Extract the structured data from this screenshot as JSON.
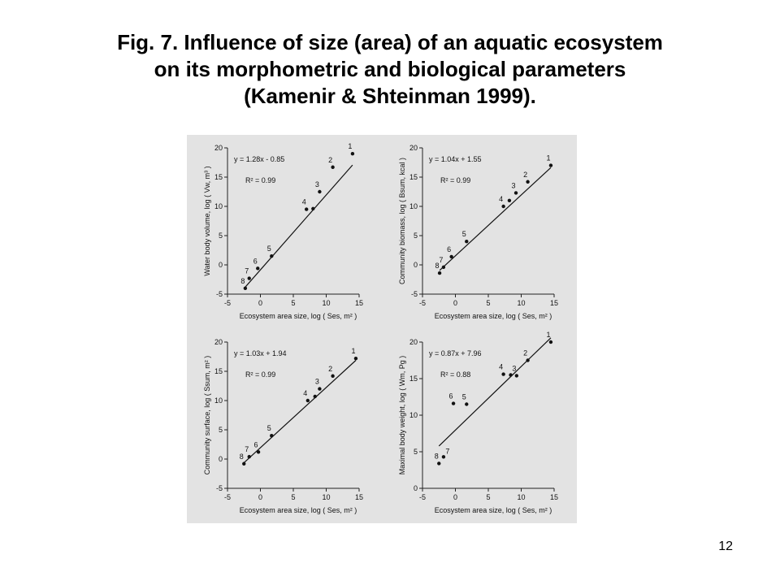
{
  "title": {
    "line1": "Fig. 7. Influence of size (area) of an aquatic ecosystem",
    "line2": "on its morphometric and biological parameters",
    "line3": "(Kamenir & Shteinman 1999)."
  },
  "page_number": "12",
  "chart_data": [
    {
      "type": "scatter",
      "equation": "y = 1.28x - 0.85",
      "r2": "R² = 0.99",
      "xlabel": "Ecosystem area size, log ( Ses, m² )",
      "ylabel": "Water body volume, log ( Vw, m³ )",
      "xlim": [
        -5,
        15
      ],
      "ylim": [
        -5,
        20
      ],
      "xticks": [
        "-5",
        "0",
        "5",
        "10",
        "15"
      ],
      "yticks": [
        "-5",
        "0",
        "5",
        "10",
        "15",
        "20"
      ],
      "points": [
        {
          "label": "1",
          "x": 14,
          "y": 19
        },
        {
          "label": "2",
          "x": 11,
          "y": 16.7
        },
        {
          "label": "3",
          "x": 9,
          "y": 12.5
        },
        {
          "label": "4",
          "x": 7,
          "y": 9.5
        },
        {
          "label": "",
          "x": 8,
          "y": 9.6
        },
        {
          "label": "5",
          "x": 1.7,
          "y": 1.5
        },
        {
          "label": "6",
          "x": -0.4,
          "y": -0.6
        },
        {
          "label": "7",
          "x": -1.7,
          "y": -2.3
        },
        {
          "label": "8",
          "x": -2.3,
          "y": -4
        }
      ],
      "fit": {
        "slope": 1.28,
        "intercept": -0.85,
        "x_range": [
          -2.3,
          14
        ]
      }
    },
    {
      "type": "scatter",
      "equation": "y = 1.04x + 1.55",
      "r2": "R² = 0.99",
      "xlabel": "Ecosystem area size, log ( Ses, m² )",
      "ylabel": "Community biomass, log ( Bsum, kcal )",
      "xlim": [
        -5,
        15
      ],
      "ylim": [
        -5,
        20
      ],
      "xticks": [
        "-5",
        "0",
        "5",
        "10",
        "15"
      ],
      "yticks": [
        "-5",
        "0",
        "5",
        "10",
        "15",
        "20"
      ],
      "points": [
        {
          "label": "1",
          "x": 14.5,
          "y": 17
        },
        {
          "label": "2",
          "x": 11,
          "y": 14.2
        },
        {
          "label": "3",
          "x": 9.2,
          "y": 12.3
        },
        {
          "label": "4",
          "x": 7.3,
          "y": 10
        },
        {
          "label": "",
          "x": 8.2,
          "y": 11
        },
        {
          "label": "5",
          "x": 1.7,
          "y": 4
        },
        {
          "label": "6",
          "x": -0.6,
          "y": 1.4
        },
        {
          "label": "7",
          "x": -1.8,
          "y": -0.4
        },
        {
          "label": "8",
          "x": -2.4,
          "y": -1.4
        }
      ],
      "fit": {
        "slope": 1.04,
        "intercept": 1.55,
        "x_range": [
          -2.4,
          14.5
        ]
      }
    },
    {
      "type": "scatter",
      "equation": "y = 1.03x + 1.94",
      "r2": "R² = 0.99",
      "xlabel": "Ecosystem area size, log ( Ses, m² )",
      "ylabel": "Community surface, log ( Ssum, m² )",
      "xlim": [
        -5,
        15
      ],
      "ylim": [
        -5,
        20
      ],
      "xticks": [
        "-5",
        "0",
        "5",
        "10",
        "15"
      ],
      "yticks": [
        "-5",
        "0",
        "5",
        "10",
        "15",
        "20"
      ],
      "points": [
        {
          "label": "1",
          "x": 14.5,
          "y": 17.2
        },
        {
          "label": "2",
          "x": 11,
          "y": 14.2
        },
        {
          "label": "3",
          "x": 9,
          "y": 12
        },
        {
          "label": "4",
          "x": 7.2,
          "y": 10
        },
        {
          "label": "",
          "x": 8.3,
          "y": 10.7
        },
        {
          "label": "5",
          "x": 1.7,
          "y": 4
        },
        {
          "label": "6",
          "x": -0.3,
          "y": 1.2
        },
        {
          "label": "7",
          "x": -1.7,
          "y": 0.4
        },
        {
          "label": "8",
          "x": -2.5,
          "y": -0.8
        }
      ],
      "fit": {
        "slope": 1.03,
        "intercept": 1.94,
        "x_range": [
          -2.5,
          14.5
        ]
      }
    },
    {
      "type": "scatter",
      "equation": "y = 0.87x + 7.96",
      "r2": "R² = 0.88",
      "xlabel": "Ecosystem area size, log ( Ses, m² )",
      "ylabel": "Maximal body weight, log ( Wm, Pg )",
      "xlim": [
        -5,
        15
      ],
      "ylim": [
        0,
        20
      ],
      "xticks": [
        "-5",
        "0",
        "5",
        "10",
        "15"
      ],
      "yticks": [
        "0",
        "5",
        "10",
        "15",
        "20"
      ],
      "points": [
        {
          "label": "1",
          "x": 14.5,
          "y": 20
        },
        {
          "label": "2",
          "x": 11,
          "y": 17.5
        },
        {
          "label": "3",
          "x": 9.3,
          "y": 15.4
        },
        {
          "label": "4",
          "x": 7.3,
          "y": 15.6
        },
        {
          "label": "",
          "x": 8.4,
          "y": 15.5
        },
        {
          "label": "5",
          "x": 1.7,
          "y": 11.5
        },
        {
          "label": "6",
          "x": -0.3,
          "y": 11.6
        },
        {
          "label": "7",
          "x": -1.8,
          "y": 4.3
        },
        {
          "label": "8",
          "x": -2.5,
          "y": 3.4
        }
      ],
      "fit": {
        "slope": 0.87,
        "intercept": 7.96,
        "x_range": [
          -2.5,
          14.5
        ]
      }
    }
  ]
}
